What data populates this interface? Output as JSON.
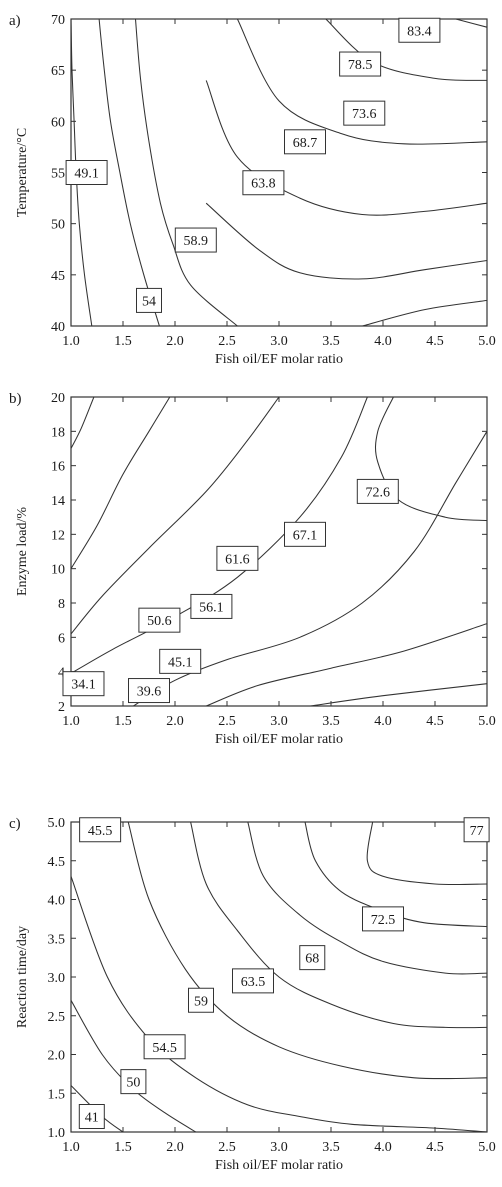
{
  "chart_data": [
    {
      "type": "contour",
      "panel_label": "a)",
      "xlabel": "Fish oil/EF molar ratio",
      "ylabel": "Temperature/°C",
      "xlim": [
        1.0,
        5.0
      ],
      "ylim": [
        40,
        70
      ],
      "x_ticks": [
        "1.0",
        "1.5",
        "2.0",
        "2.5",
        "3.0",
        "3.5",
        "4.0",
        "4.5",
        "5.0"
      ],
      "y_ticks": [
        "40",
        "45",
        "50",
        "55",
        "60",
        "65",
        "70"
      ],
      "contour_labels": [
        {
          "text": "49.1",
          "x": 1.15,
          "y": 55.0
        },
        {
          "text": "54",
          "x": 1.75,
          "y": 42.5
        },
        {
          "text": "58.9",
          "x": 2.2,
          "y": 48.4
        },
        {
          "text": "63.8",
          "x": 2.85,
          "y": 54.0
        },
        {
          "text": "68.7",
          "x": 3.25,
          "y": 58.0
        },
        {
          "text": "73.6",
          "x": 3.82,
          "y": 60.8
        },
        {
          "text": "78.5",
          "x": 3.78,
          "y": 65.6
        },
        {
          "text": "83.4",
          "x": 4.35,
          "y": 68.9
        }
      ]
    },
    {
      "type": "contour",
      "panel_label": "b)",
      "xlabel": "Fish oil/EF molar ratio",
      "ylabel": "Enzyme load/%",
      "xlim": [
        1.0,
        5.0
      ],
      "ylim": [
        2,
        20
      ],
      "x_ticks": [
        "1.0",
        "1.5",
        "2.0",
        "2.5",
        "3.0",
        "3.5",
        "4.0",
        "4.5",
        "5.0"
      ],
      "y_ticks": [
        "2",
        "4",
        "6",
        "8",
        "10",
        "12",
        "14",
        "16",
        "18",
        "20"
      ],
      "contour_labels": [
        {
          "text": "34.1",
          "x": 1.12,
          "y": 3.3
        },
        {
          "text": "39.6",
          "x": 1.75,
          "y": 2.9
        },
        {
          "text": "45.1",
          "x": 2.05,
          "y": 4.6
        },
        {
          "text": "50.6",
          "x": 1.85,
          "y": 7.0
        },
        {
          "text": "56.1",
          "x": 2.35,
          "y": 7.8
        },
        {
          "text": "61.6",
          "x": 2.6,
          "y": 10.6
        },
        {
          "text": "67.1",
          "x": 3.25,
          "y": 12.0
        },
        {
          "text": "72.6",
          "x": 3.95,
          "y": 14.5
        }
      ]
    },
    {
      "type": "contour",
      "panel_label": "c)",
      "xlabel": "Fish oil/EF molar ratio",
      "ylabel": "Reaction time/day",
      "xlim": [
        1.0,
        5.0
      ],
      "ylim": [
        1.0,
        5.0
      ],
      "x_ticks": [
        "1.0",
        "1.5",
        "2.0",
        "2.5",
        "3.0",
        "3.5",
        "4.0",
        "4.5",
        "5.0"
      ],
      "y_ticks": [
        "1.0",
        "1.5",
        "2.0",
        "2.5",
        "3.0",
        "3.5",
        "4.0",
        "4.5",
        "5.0"
      ],
      "contour_labels": [
        {
          "text": "41",
          "x": 1.2,
          "y": 1.2
        },
        {
          "text": "50",
          "x": 1.6,
          "y": 1.65
        },
        {
          "text": "54.5",
          "x": 1.9,
          "y": 2.1
        },
        {
          "text": "59",
          "x": 2.25,
          "y": 2.7
        },
        {
          "text": "63.5",
          "x": 2.75,
          "y": 2.95
        },
        {
          "text": "68",
          "x": 3.32,
          "y": 3.25
        },
        {
          "text": "72.5",
          "x": 4.0,
          "y": 3.75
        },
        {
          "text": "45.5",
          "x": 1.28,
          "y": 4.9
        },
        {
          "text": "77",
          "x": 4.9,
          "y": 4.9
        }
      ]
    }
  ]
}
